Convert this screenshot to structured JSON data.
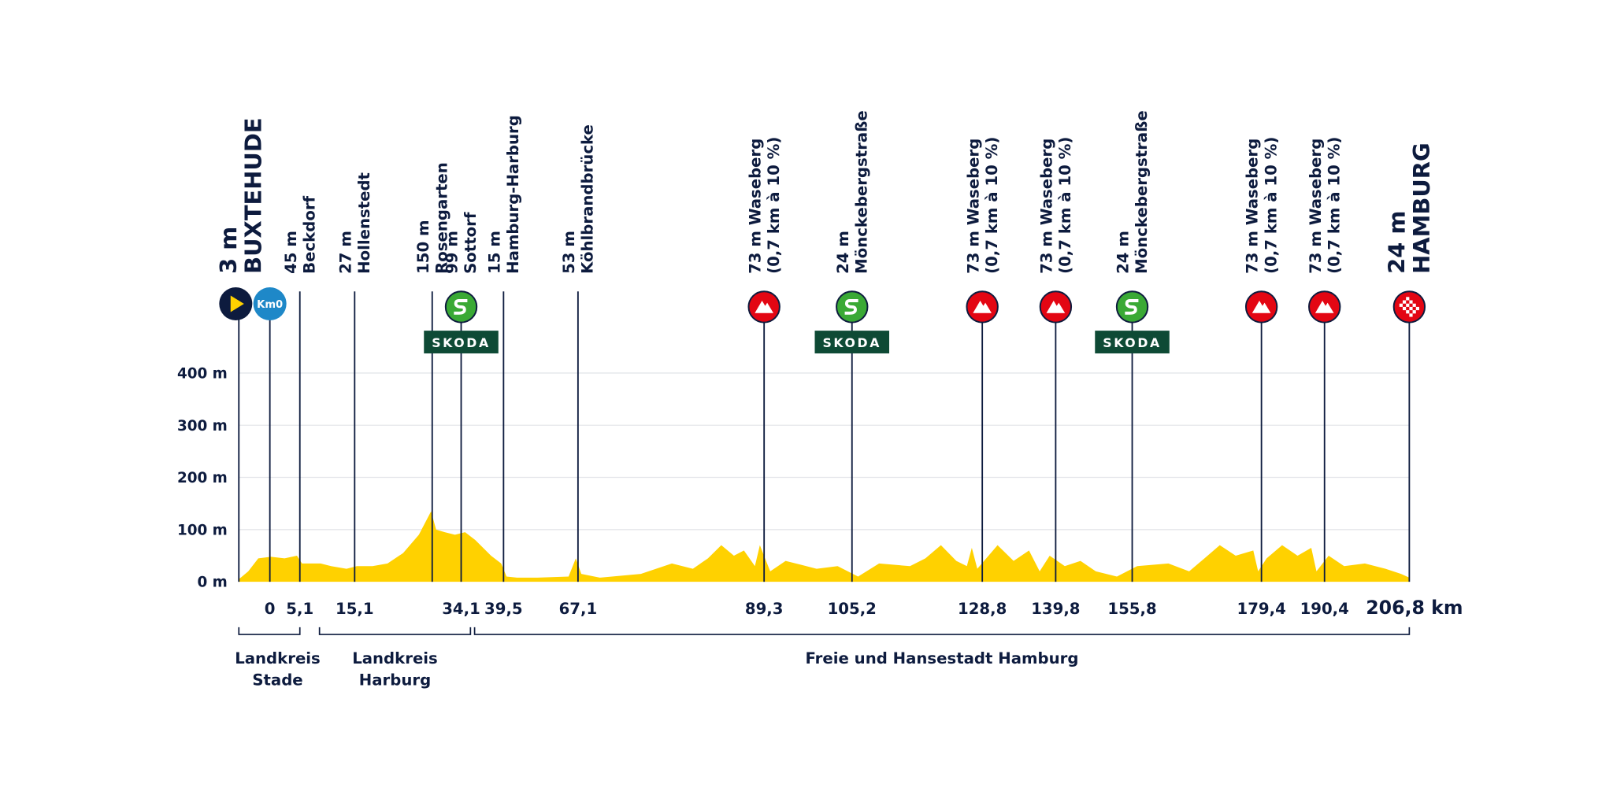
{
  "chart_data": {
    "type": "area",
    "color": "#ffd100",
    "ylim": [
      0,
      400
    ],
    "yticks": [
      {
        "value": 0,
        "label": "0 m"
      },
      {
        "value": 100,
        "label": "100 m"
      },
      {
        "value": 200,
        "label": "200 m"
      },
      {
        "value": 300,
        "label": "300 m"
      },
      {
        "value": 400,
        "label": "400 m"
      }
    ],
    "grid": true,
    "waypoints": [
      {
        "line1": "3 m",
        "line2": "BUXTEHUDE",
        "km": -5.6,
        "marker": "start",
        "major": true
      },
      {
        "icon_text": "Km0",
        "km": 0,
        "marker": "km0"
      },
      {
        "line1": "45 m",
        "line2": "Beckdorf",
        "km": {
          "value": 5.1,
          "label": "5,1"
        }
      },
      {
        "line1": "27 m",
        "line2": "Hollenstedt",
        "km": {
          "value": 15.1,
          "label": "15,1"
        }
      },
      {
        "line1": "150 m",
        "line2": "Rosengarten",
        "km": 29
      },
      {
        "line1": "99 m",
        "line2": "Sottorf",
        "km": {
          "value": 34.1,
          "label": "34,1"
        },
        "marker": "sprint",
        "sponsor": "SKODA"
      },
      {
        "line1": "15 m",
        "line2": "Hamburg-Harburg",
        "km": {
          "value": 39.5,
          "label": "39,5"
        }
      },
      {
        "line1": "53 m",
        "line2": "Köhlbrandbrücke",
        "km": {
          "value": 67.1,
          "label": "67,1"
        }
      },
      {
        "line1": "73 m Waseberg",
        "line2": "(0,7 km à 10 %)",
        "km": {
          "value": 89.3,
          "label": "89,3"
        },
        "marker": "climb"
      },
      {
        "line1": "24 m",
        "line2": "Mönckebergstraße",
        "km": {
          "value": 105.2,
          "label": "105,2"
        },
        "marker": "sprint",
        "sponsor": "SKODA"
      },
      {
        "line1": "73 m Waseberg",
        "line2": "(0,7 km à 10 %)",
        "km": {
          "value": 128.8,
          "label": "128,8"
        },
        "marker": "climb"
      },
      {
        "line1": "73 m Waseberg",
        "line2": "(0,7 km à 10 %)",
        "km": {
          "value": 139.8,
          "label": "139,8"
        },
        "marker": "climb"
      },
      {
        "line1": "24 m",
        "line2": "Mönckebergstraße",
        "km": {
          "value": 155.8,
          "label": "155,8"
        },
        "marker": "sprint",
        "sponsor": "SKODA"
      },
      {
        "line1": "73 m Waseberg",
        "line2": "(0,7 km à 10 %)",
        "km": {
          "value": 179.4,
          "label": "179,4"
        },
        "marker": "climb"
      },
      {
        "line1": "73 m Waseberg",
        "line2": "(0,7 km à 10 %)",
        "km": {
          "value": 190.4,
          "label": "190,4"
        },
        "marker": "climb"
      },
      {
        "line1": "24 m",
        "line2": "HAMBURG",
        "km": {
          "value": 206.8,
          "label": "206,8 km"
        },
        "marker": "finish",
        "major": true
      }
    ],
    "profile": {
      "x": [
        -5.6,
        -3.9,
        -2.1,
        0.2,
        2.5,
        4.6,
        5.5,
        8.9,
        10.8,
        13.6,
        15.5,
        18.3,
        21.0,
        23.8,
        26.6,
        28.8,
        29.7,
        31.2,
        33.0,
        34.6,
        35.9,
        37.9,
        39.2,
        40.6,
        44.5,
        52.1,
        63.6,
        66.3,
        67.5,
        69.7,
        74.6,
        78.3,
        80.8,
        82.6,
        84.2,
        85.7,
        86.9,
        88.2,
        88.8,
        90.4,
        93.2,
        98.8,
        102.6,
        106.3,
        110.1,
        115.7,
        118.5,
        121.3,
        124.1,
        126.0,
        126.9,
        127.9,
        131.1,
        133.5,
        135.8,
        137.4,
        138.9,
        141.7,
        145.0,
        148.2,
        152.6,
        156.7,
        162.4,
        166.2,
        169.0,
        171.8,
        174.7,
        177.9,
        178.8,
        180.3,
        183.0,
        185.7,
        188.1,
        189.0,
        191.2,
        194.2,
        198.2,
        202.2,
        205.2,
        206.8
      ],
      "values": [
        5,
        20,
        45,
        48,
        45,
        50,
        35,
        35,
        30,
        25,
        30,
        30,
        35,
        55,
        90,
        135,
        100,
        95,
        90,
        95,
        80,
        50,
        35,
        10,
        8,
        8,
        10,
        45,
        15,
        8,
        15,
        35,
        25,
        45,
        70,
        50,
        60,
        30,
        70,
        20,
        40,
        25,
        30,
        10,
        35,
        30,
        45,
        70,
        40,
        30,
        65,
        25,
        70,
        40,
        60,
        20,
        50,
        30,
        40,
        20,
        10,
        30,
        35,
        20,
        45,
        70,
        50,
        60,
        20,
        45,
        70,
        50,
        65,
        20,
        50,
        30,
        35,
        25,
        15,
        8
      ]
    },
    "regions": [
      {
        "lines": [
          "Landkreis",
          "Stade"
        ]
      },
      {
        "lines": [
          "Landkreis",
          "Harburg"
        ]
      },
      {
        "lines": [
          "Freie und Hansestadt Hamburg"
        ]
      }
    ]
  }
}
